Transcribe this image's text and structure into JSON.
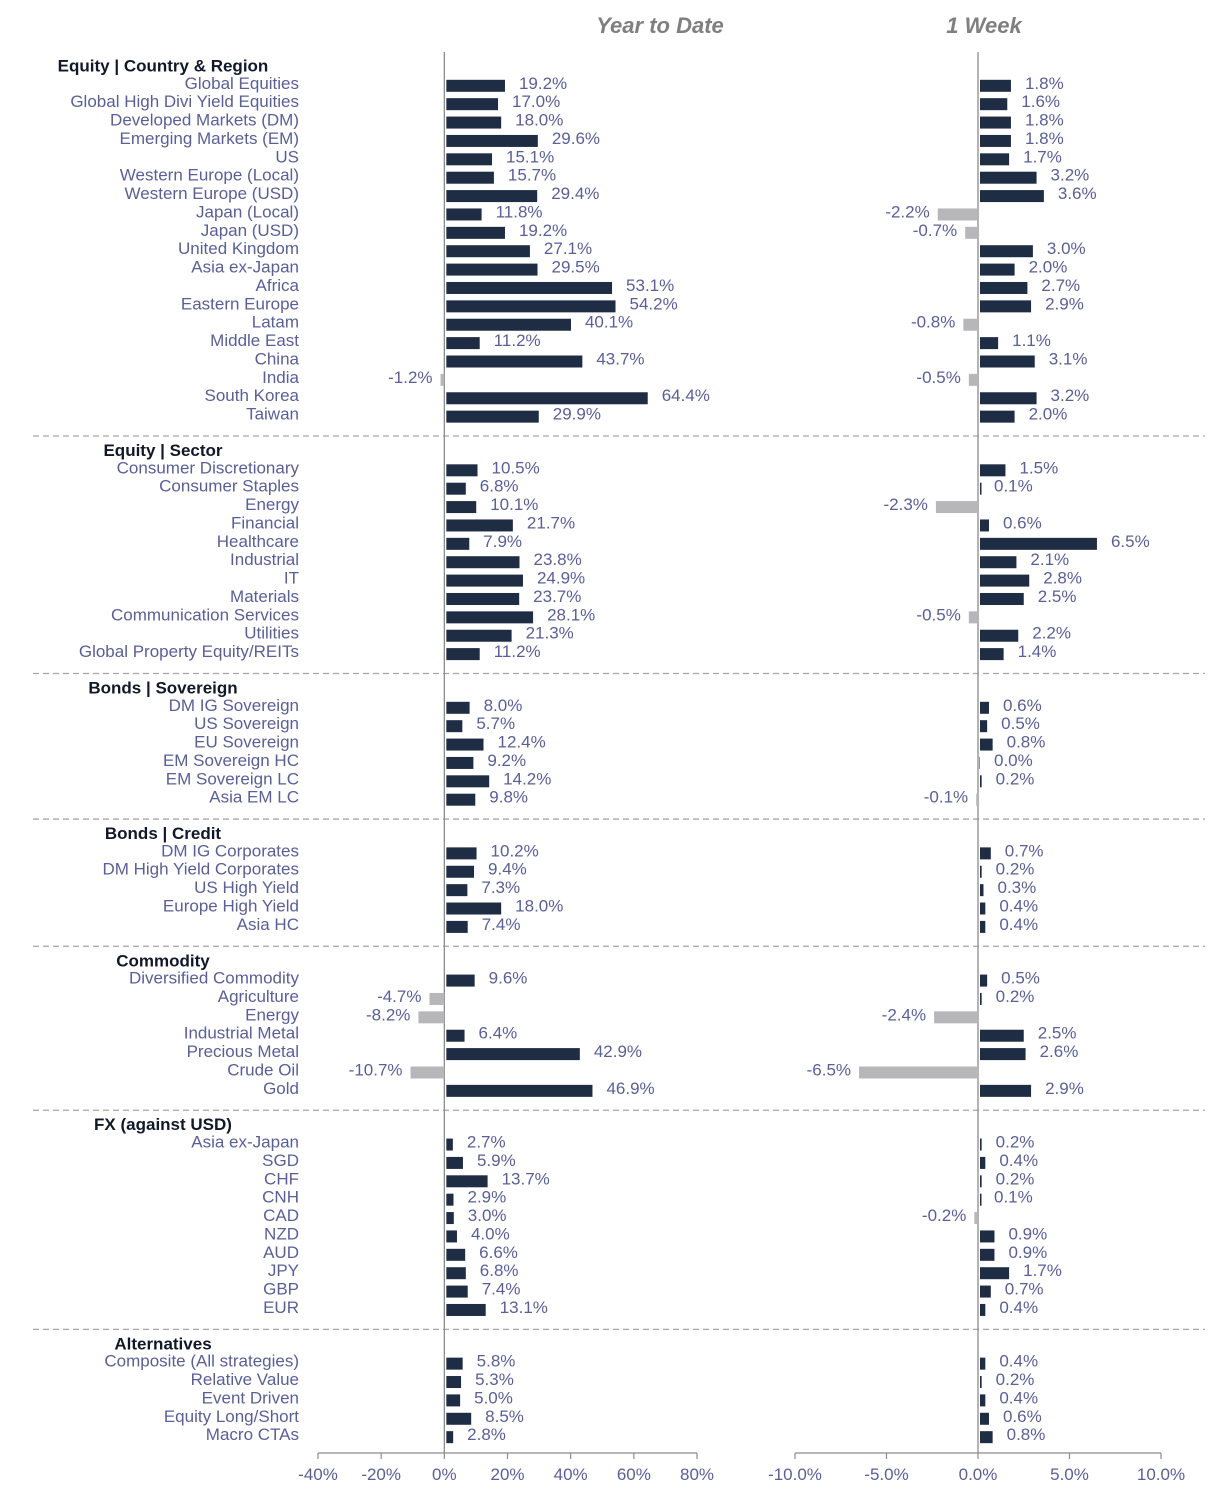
{
  "colors": {
    "positive": "#1f2d44",
    "negative": "#b7b7b9",
    "label": "#5a5f94",
    "section": "#111827",
    "title": "#7f7f7f",
    "divider": "#a6a6a6"
  },
  "chart_data": {
    "type": "bar",
    "orientation": "horizontal",
    "panels": [
      {
        "title": "Year to Date",
        "xlim": [
          -40,
          80
        ],
        "ticks": [
          "-40%",
          "-20%",
          "0%",
          "20%",
          "40%",
          "60%",
          "80%"
        ],
        "tick_values": [
          -40,
          -20,
          0,
          20,
          40,
          60,
          80
        ]
      },
      {
        "title": "1 Week",
        "xlim": [
          -10,
          10
        ],
        "ticks": [
          "-10.0%",
          "-5.0%",
          "0.0%",
          "5.0%",
          "10.0%"
        ],
        "tick_values": [
          -10,
          -5,
          0,
          5,
          10
        ]
      }
    ],
    "sections": [
      {
        "name": "Equity | Country & Region",
        "items": [
          {
            "label": "Global Equities",
            "ytd": 19.2,
            "wk": 1.8,
            "ytd_label": "19.2%",
            "wk_label": "1.8%"
          },
          {
            "label": "Global High Divi Yield Equities",
            "ytd": 17.0,
            "wk": 1.6,
            "ytd_label": "17.0%",
            "wk_label": "1.6%"
          },
          {
            "label": "Developed Markets (DM)",
            "ytd": 18.0,
            "wk": 1.8,
            "ytd_label": "18.0%",
            "wk_label": "1.8%"
          },
          {
            "label": "Emerging Markets (EM)",
            "ytd": 29.6,
            "wk": 1.8,
            "ytd_label": "29.6%",
            "wk_label": "1.8%"
          },
          {
            "label": "US",
            "ytd": 15.1,
            "wk": 1.7,
            "ytd_label": "15.1%",
            "wk_label": "1.7%"
          },
          {
            "label": "Western Europe (Local)",
            "ytd": 15.7,
            "wk": 3.2,
            "ytd_label": "15.7%",
            "wk_label": "3.2%"
          },
          {
            "label": "Western Europe (USD)",
            "ytd": 29.4,
            "wk": 3.6,
            "ytd_label": "29.4%",
            "wk_label": "3.6%"
          },
          {
            "label": "Japan (Local)",
            "ytd": 11.8,
            "wk": -2.2,
            "ytd_label": "11.8%",
            "wk_label": "-2.2%"
          },
          {
            "label": "Japan (USD)",
            "ytd": 19.2,
            "wk": -0.7,
            "ytd_label": "19.2%",
            "wk_label": "-0.7%"
          },
          {
            "label": "United Kingdom",
            "ytd": 27.1,
            "wk": 3.0,
            "ytd_label": "27.1%",
            "wk_label": "3.0%"
          },
          {
            "label": "Asia ex-Japan",
            "ytd": 29.5,
            "wk": 2.0,
            "ytd_label": "29.5%",
            "wk_label": "2.0%"
          },
          {
            "label": "Africa",
            "ytd": 53.1,
            "wk": 2.7,
            "ytd_label": "53.1%",
            "wk_label": "2.7%"
          },
          {
            "label": "Eastern Europe",
            "ytd": 54.2,
            "wk": 2.9,
            "ytd_label": "54.2%",
            "wk_label": "2.9%"
          },
          {
            "label": "Latam",
            "ytd": 40.1,
            "wk": -0.8,
            "ytd_label": "40.1%",
            "wk_label": "-0.8%"
          },
          {
            "label": "Middle East",
            "ytd": 11.2,
            "wk": 1.1,
            "ytd_label": "11.2%",
            "wk_label": "1.1%"
          },
          {
            "label": "China",
            "ytd": 43.7,
            "wk": 3.1,
            "ytd_label": "43.7%",
            "wk_label": "3.1%"
          },
          {
            "label": "India",
            "ytd": -1.2,
            "wk": -0.5,
            "ytd_label": "-1.2%",
            "wk_label": "-0.5%"
          },
          {
            "label": "South Korea",
            "ytd": 64.4,
            "wk": 3.2,
            "ytd_label": "64.4%",
            "wk_label": "3.2%"
          },
          {
            "label": "Taiwan",
            "ytd": 29.9,
            "wk": 2.0,
            "ytd_label": "29.9%",
            "wk_label": "2.0%"
          }
        ]
      },
      {
        "name": "Equity | Sector",
        "items": [
          {
            "label": "Consumer Discretionary",
            "ytd": 10.5,
            "wk": 1.5,
            "ytd_label": "10.5%",
            "wk_label": "1.5%"
          },
          {
            "label": "Consumer Staples",
            "ytd": 6.8,
            "wk": 0.1,
            "ytd_label": "6.8%",
            "wk_label": "0.1%"
          },
          {
            "label": "Energy",
            "ytd": 10.1,
            "wk": -2.3,
            "ytd_label": "10.1%",
            "wk_label": "-2.3%"
          },
          {
            "label": "Financial",
            "ytd": 21.7,
            "wk": 0.6,
            "ytd_label": "21.7%",
            "wk_label": "0.6%"
          },
          {
            "label": "Healthcare",
            "ytd": 7.9,
            "wk": 6.5,
            "ytd_label": "7.9%",
            "wk_label": "6.5%"
          },
          {
            "label": "Industrial",
            "ytd": 23.8,
            "wk": 2.1,
            "ytd_label": "23.8%",
            "wk_label": "2.1%"
          },
          {
            "label": "IT",
            "ytd": 24.9,
            "wk": 2.8,
            "ytd_label": "24.9%",
            "wk_label": "2.8%"
          },
          {
            "label": "Materials",
            "ytd": 23.7,
            "wk": 2.5,
            "ytd_label": "23.7%",
            "wk_label": "2.5%"
          },
          {
            "label": "Communication Services",
            "ytd": 28.1,
            "wk": -0.5,
            "ytd_label": "28.1%",
            "wk_label": "-0.5%"
          },
          {
            "label": "Utilities",
            "ytd": 21.3,
            "wk": 2.2,
            "ytd_label": "21.3%",
            "wk_label": "2.2%"
          },
          {
            "label": "Global Property Equity/REITs",
            "ytd": 11.2,
            "wk": 1.4,
            "ytd_label": "11.2%",
            "wk_label": "1.4%"
          }
        ]
      },
      {
        "name": "Bonds | Sovereign",
        "items": [
          {
            "label": "DM IG Sovereign",
            "ytd": 8.0,
            "wk": 0.6,
            "ytd_label": "8.0%",
            "wk_label": "0.6%"
          },
          {
            "label": "US Sovereign",
            "ytd": 5.7,
            "wk": 0.5,
            "ytd_label": "5.7%",
            "wk_label": "0.5%"
          },
          {
            "label": "EU Sovereign",
            "ytd": 12.4,
            "wk": 0.8,
            "ytd_label": "12.4%",
            "wk_label": "0.8%"
          },
          {
            "label": "EM Sovereign HC",
            "ytd": 9.2,
            "wk": 0.0,
            "ytd_label": "9.2%",
            "wk_label": "0.0%"
          },
          {
            "label": "EM Sovereign LC",
            "ytd": 14.2,
            "wk": 0.2,
            "ytd_label": "14.2%",
            "wk_label": "0.2%"
          },
          {
            "label": "Asia EM LC",
            "ytd": 9.8,
            "wk": -0.1,
            "ytd_label": "9.8%",
            "wk_label": "-0.1%"
          }
        ]
      },
      {
        "name": "Bonds | Credit",
        "items": [
          {
            "label": "DM IG Corporates",
            "ytd": 10.2,
            "wk": 0.7,
            "ytd_label": "10.2%",
            "wk_label": "0.7%"
          },
          {
            "label": "DM High Yield Corporates",
            "ytd": 9.4,
            "wk": 0.2,
            "ytd_label": "9.4%",
            "wk_label": "0.2%"
          },
          {
            "label": "US High Yield",
            "ytd": 7.3,
            "wk": 0.3,
            "ytd_label": "7.3%",
            "wk_label": "0.3%"
          },
          {
            "label": "Europe High Yield",
            "ytd": 18.0,
            "wk": 0.4,
            "ytd_label": "18.0%",
            "wk_label": "0.4%"
          },
          {
            "label": "Asia HC",
            "ytd": 7.4,
            "wk": 0.4,
            "ytd_label": "7.4%",
            "wk_label": "0.4%"
          }
        ]
      },
      {
        "name": "Commodity",
        "items": [
          {
            "label": "Diversified Commodity",
            "ytd": 9.6,
            "wk": 0.5,
            "ytd_label": "9.6%",
            "wk_label": "0.5%"
          },
          {
            "label": "Agriculture",
            "ytd": -4.7,
            "wk": 0.2,
            "ytd_label": "-4.7%",
            "wk_label": "0.2%"
          },
          {
            "label": "Energy",
            "ytd": -8.2,
            "wk": -2.4,
            "ytd_label": "-8.2%",
            "wk_label": "-2.4%"
          },
          {
            "label": "Industrial Metal",
            "ytd": 6.4,
            "wk": 2.5,
            "ytd_label": "6.4%",
            "wk_label": "2.5%"
          },
          {
            "label": "Precious Metal",
            "ytd": 42.9,
            "wk": 2.6,
            "ytd_label": "42.9%",
            "wk_label": "2.6%"
          },
          {
            "label": "Crude Oil",
            "ytd": -10.7,
            "wk": -6.5,
            "ytd_label": "-10.7%",
            "wk_label": "-6.5%"
          },
          {
            "label": "Gold",
            "ytd": 46.9,
            "wk": 2.9,
            "ytd_label": "46.9%",
            "wk_label": "2.9%"
          }
        ]
      },
      {
        "name": "FX (against USD)",
        "items": [
          {
            "label": "Asia ex-Japan",
            "ytd": 2.7,
            "wk": 0.2,
            "ytd_label": "2.7%",
            "wk_label": "0.2%"
          },
          {
            "label": "SGD",
            "ytd": 5.9,
            "wk": 0.4,
            "ytd_label": "5.9%",
            "wk_label": "0.4%"
          },
          {
            "label": "CHF",
            "ytd": 13.7,
            "wk": 0.2,
            "ytd_label": "13.7%",
            "wk_label": "0.2%"
          },
          {
            "label": "CNH",
            "ytd": 2.9,
            "wk": 0.1,
            "ytd_label": "2.9%",
            "wk_label": "0.1%"
          },
          {
            "label": "CAD",
            "ytd": 3.0,
            "wk": -0.2,
            "ytd_label": "3.0%",
            "wk_label": "-0.2%"
          },
          {
            "label": "NZD",
            "ytd": 4.0,
            "wk": 0.9,
            "ytd_label": "4.0%",
            "wk_label": "0.9%"
          },
          {
            "label": "AUD",
            "ytd": 6.6,
            "wk": 0.9,
            "ytd_label": "6.6%",
            "wk_label": "0.9%"
          },
          {
            "label": "JPY",
            "ytd": 6.8,
            "wk": 1.7,
            "ytd_label": "6.8%",
            "wk_label": "1.7%"
          },
          {
            "label": "GBP",
            "ytd": 7.4,
            "wk": 0.7,
            "ytd_label": "7.4%",
            "wk_label": "0.7%"
          },
          {
            "label": "EUR",
            "ytd": 13.1,
            "wk": 0.4,
            "ytd_label": "13.1%",
            "wk_label": "0.4%"
          }
        ]
      },
      {
        "name": "Alternatives",
        "items": [
          {
            "label": "Composite (All strategies)",
            "ytd": 5.8,
            "wk": 0.4,
            "ytd_label": "5.8%",
            "wk_label": "0.4%"
          },
          {
            "label": "Relative Value",
            "ytd": 5.3,
            "wk": 0.2,
            "ytd_label": "5.3%",
            "wk_label": "0.2%"
          },
          {
            "label": "Event Driven",
            "ytd": 5.0,
            "wk": 0.4,
            "ytd_label": "5.0%",
            "wk_label": "0.4%"
          },
          {
            "label": "Equity Long/Short",
            "ytd": 8.5,
            "wk": 0.6,
            "ytd_label": "8.5%",
            "wk_label": "0.6%"
          },
          {
            "label": "Macro CTAs",
            "ytd": 2.8,
            "wk": 0.8,
            "ytd_label": "2.8%",
            "wk_label": "0.8%"
          }
        ]
      }
    ]
  }
}
